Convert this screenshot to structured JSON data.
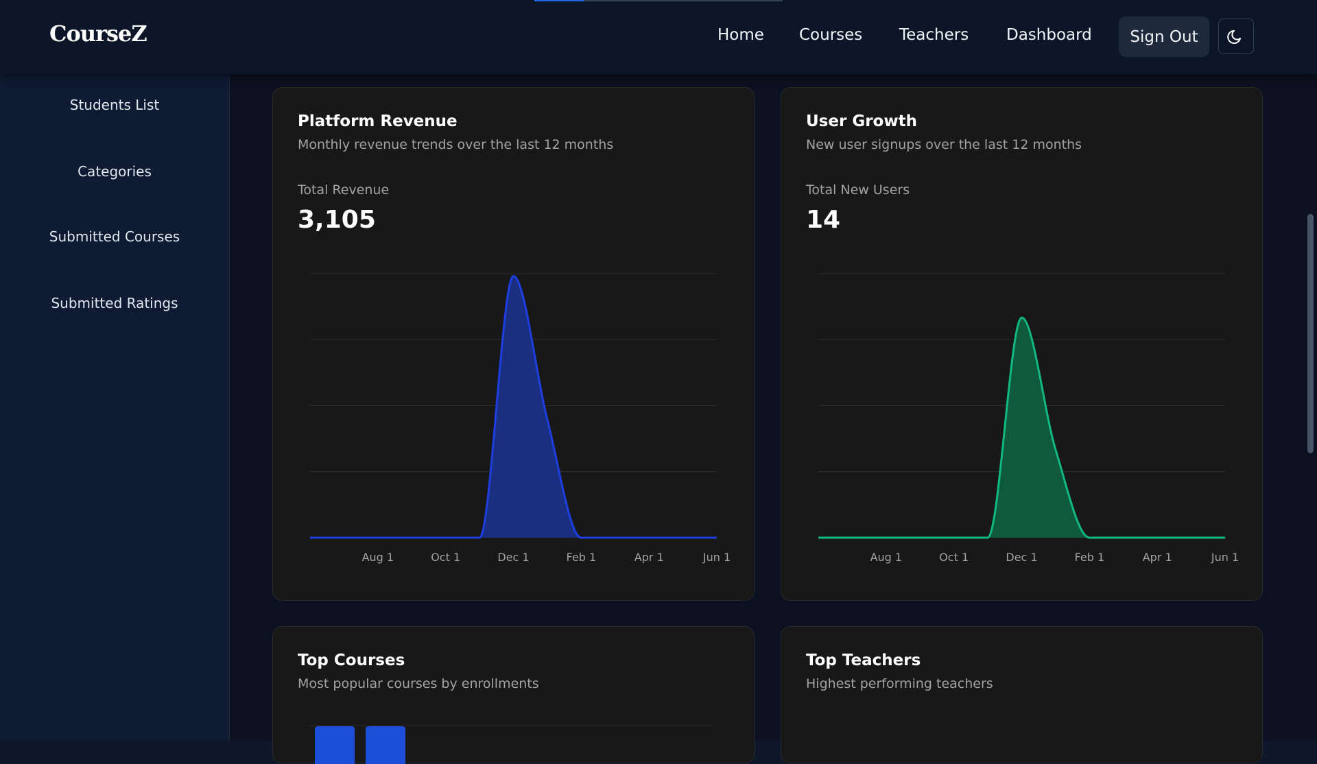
{
  "header": {
    "logo": "CourseZ",
    "nav": [
      "Home",
      "Courses",
      "Teachers",
      "Dashboard"
    ],
    "sign_out": "Sign Out"
  },
  "sidebar": [
    "Students List",
    "Categories",
    "Submitted Courses",
    "Submitted Ratings"
  ],
  "chart_data": [
    {
      "type": "area",
      "title": "Platform Revenue",
      "subtitle": "Monthly revenue trends over the last 12 months",
      "total_label": "Total Revenue",
      "total": "3,105",
      "x": [
        null,
        null,
        "Aug 1",
        null,
        "Oct 1",
        null,
        "Dec 1",
        null,
        "Feb 1",
        null,
        "Apr 1",
        null,
        "Jun 1"
      ],
      "values": [
        0,
        0,
        0,
        0,
        0,
        0,
        2140,
        965,
        0,
        0,
        0,
        0,
        0
      ],
      "color": "#1d3fe0",
      "fill_color": "#1b2f80",
      "ylim": [
        0,
        2160
      ],
      "grid": true
    },
    {
      "type": "area",
      "title": "User Growth",
      "subtitle": "New user signups over the last 12 months",
      "total_label": "Total New Users",
      "total": "14",
      "x": [
        null,
        null,
        "Aug 1",
        null,
        "Oct 1",
        null,
        "Dec 1",
        null,
        "Feb 1",
        null,
        "Apr 1",
        null,
        "Jun 1"
      ],
      "values": [
        0,
        0,
        0,
        0,
        0,
        0,
        10,
        4,
        0,
        0,
        0,
        0,
        0
      ],
      "color": "#10b981",
      "fill_color": "#0f5a3c",
      "ylim": [
        0,
        12
      ],
      "grid": true
    }
  ],
  "cards": [
    {
      "title": "Top Courses",
      "subtitle": "Most popular courses by enrollments"
    },
    {
      "title": "Top Teachers",
      "subtitle": "Highest performing teachers"
    }
  ]
}
